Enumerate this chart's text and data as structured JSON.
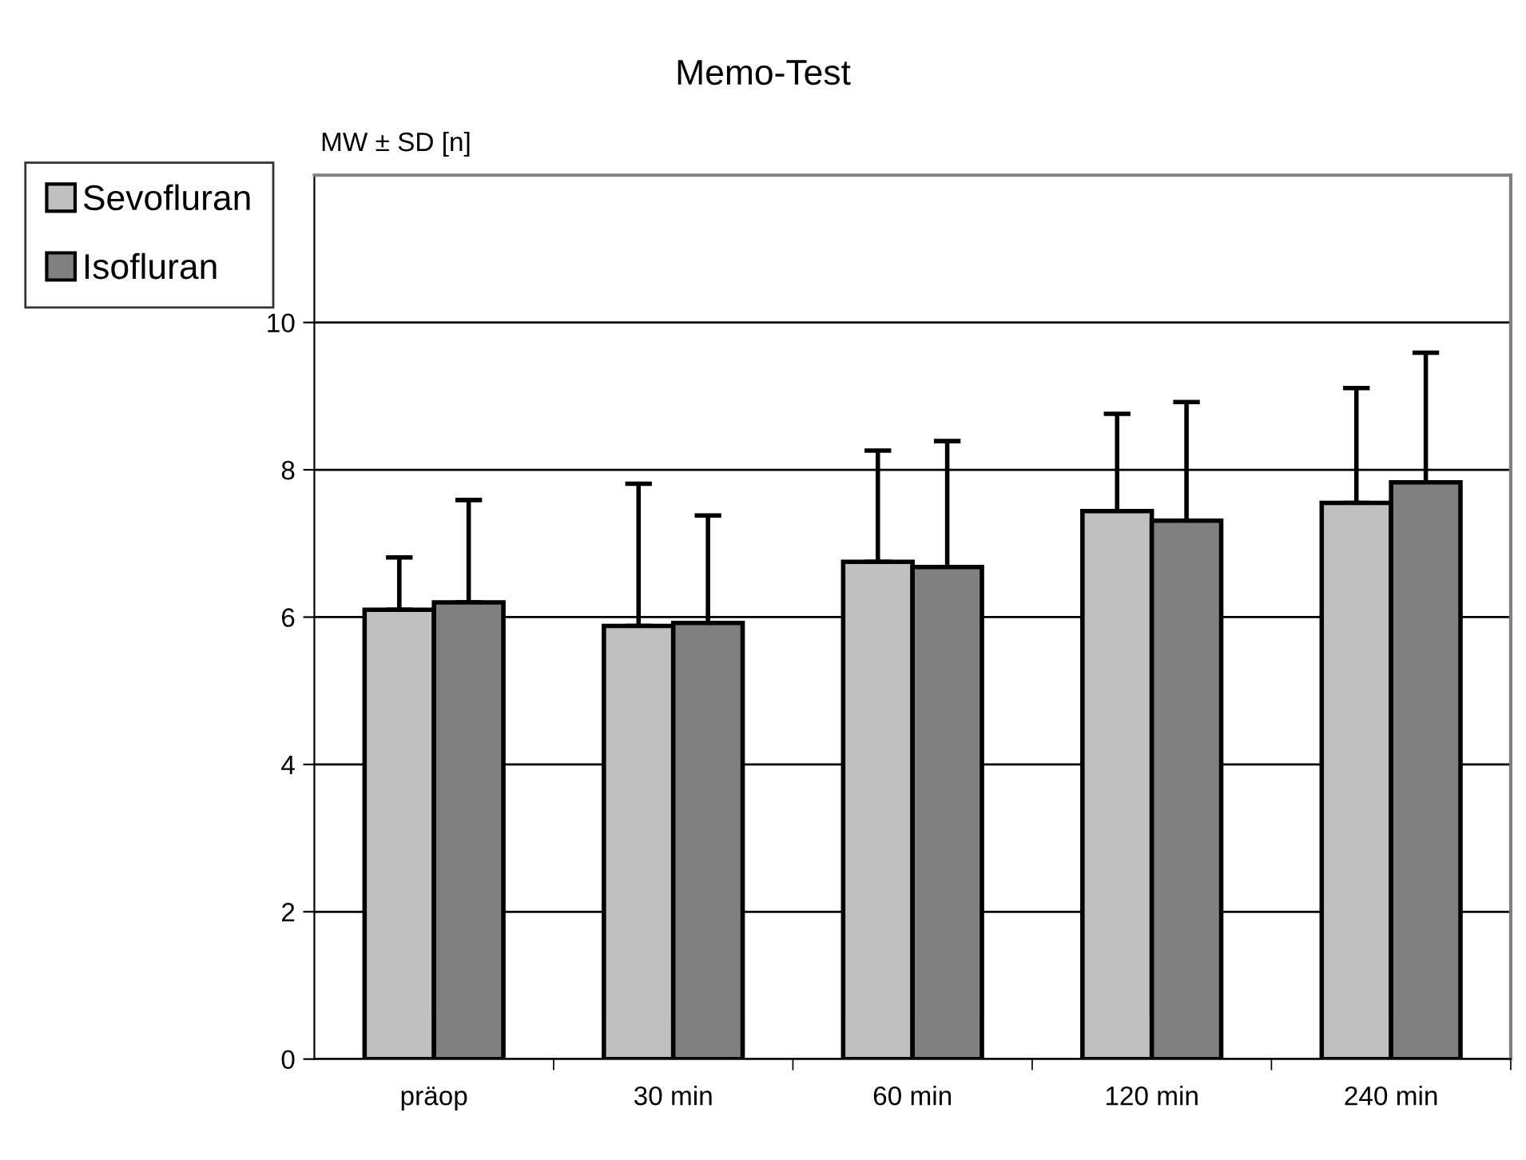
{
  "chart_data": {
    "type": "bar",
    "title": "Memo-Test",
    "ylabel": "MW ± SD [n]",
    "categories": [
      "präop",
      "30 min",
      "60 min",
      "120 min",
      "240 min"
    ],
    "series": [
      {
        "name": "Sevofluran",
        "color": "#c0c0c0",
        "values": [
          6.1,
          5.88,
          6.75,
          7.44,
          7.55
        ],
        "errors": [
          [
            6.1,
            6.81
          ],
          [
            5.88,
            7.81
          ],
          [
            6.75,
            8.26
          ],
          [
            7.44,
            8.76
          ],
          [
            7.55,
            9.11
          ]
        ]
      },
      {
        "name": "Isofluran",
        "color": "#808080",
        "values": [
          6.2,
          5.92,
          6.68,
          7.31,
          7.83
        ],
        "errors": [
          [
            6.2,
            7.59
          ],
          [
            5.92,
            7.38
          ],
          [
            6.68,
            8.39
          ],
          [
            7.31,
            8.92
          ],
          [
            7.83,
            9.59
          ]
        ]
      }
    ],
    "ylim": [
      0,
      12
    ],
    "yticks": [
      0,
      2,
      4,
      6,
      8,
      10
    ],
    "grid": "y",
    "legend": "top left"
  }
}
